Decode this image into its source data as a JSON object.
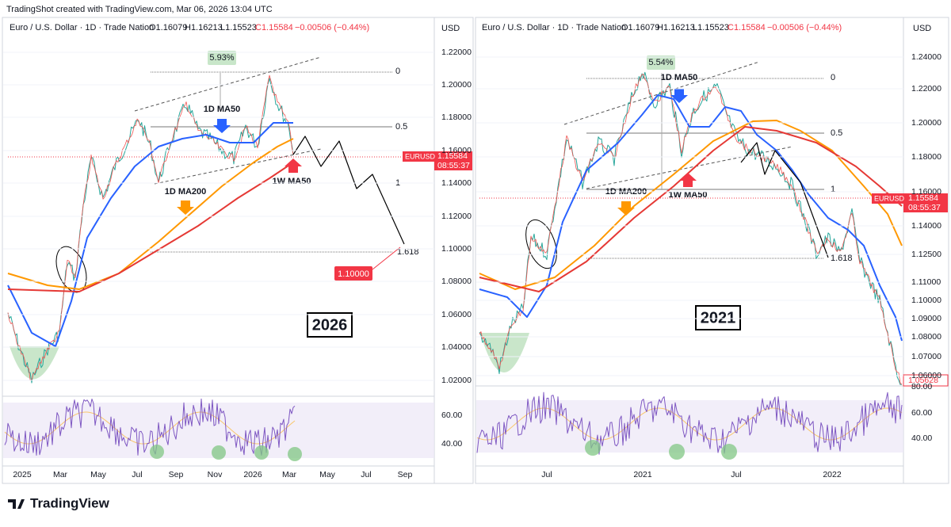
{
  "header": {
    "credit": "TradingShot created with TradingView.com, Mar 06, 2026 13:04 UTC"
  },
  "footer": {
    "logo": "TradingView"
  },
  "panels": [
    {
      "legend": {
        "symbol": "Euro / U.S. Dollar · 1D · Trade Nation",
        "open": "O1.16079",
        "high": "H1.16213",
        "low": "L1.15523",
        "close": "C1.15584",
        "change": "−0.00506 (−0.44%)"
      },
      "currency": "USD",
      "price_ticks": [
        "1.22000",
        "1.20000",
        "1.18000",
        "1.16000",
        "1.14000",
        "1.12000",
        "1.10000",
        "1.08000",
        "1.06000",
        "1.04000",
        "1.02000"
      ],
      "rsi_ticks": [
        "60.00",
        "40.00"
      ],
      "time_ticks": [
        "2025",
        "Mar",
        "May",
        "Jul",
        "Sep",
        "Nov",
        "2026",
        "Mar",
        "May",
        "Jul",
        "Sep"
      ],
      "tag": {
        "symbol": "EURUSD",
        "price": "1.15584",
        "countdown": "08:55:37"
      },
      "annotations": {
        "range": "5.93%",
        "fib_0": "0",
        "fib_05": "0.5",
        "fib_1": "1",
        "fib_1618": "1.618",
        "ma50": "1D MA50",
        "ma200": "1D MA200",
        "wma50": "1W MA50",
        "target": "1.10000",
        "year": "2026"
      }
    },
    {
      "legend": {
        "symbol": "Euro / U.S. Dollar · 1D · Trade Nation",
        "open": "O1.16079",
        "high": "H1.16213",
        "low": "L1.15523",
        "close": "C1.15584",
        "change": "−0.00506 (−0.44%)"
      },
      "currency": "USD",
      "price_ticks": [
        "1.24000",
        "1.22000",
        "1.20000",
        "1.18000",
        "1.16000",
        "1.14000",
        "1.12500",
        "1.11000",
        "1.10000",
        "1.09000",
        "1.08000",
        "1.07000",
        "1.06000"
      ],
      "rsi_ticks": [
        "80.00",
        "60.00",
        "40.00"
      ],
      "time_ticks": [
        "Jul",
        "2021",
        "Jul",
        "2022"
      ],
      "tag": {
        "symbol": "EURUSD",
        "price": "1.15584",
        "countdown": "08:55:37",
        "last": "1.05628"
      },
      "annotations": {
        "range": "5.54%",
        "fib_0": "0",
        "fib_05": "0.5",
        "fib_1": "1",
        "fib_1618": "1.618",
        "ma50": "1D MA50",
        "ma200": "1D MA200",
        "wma50": "1W MA50",
        "year": "2021"
      }
    }
  ]
}
